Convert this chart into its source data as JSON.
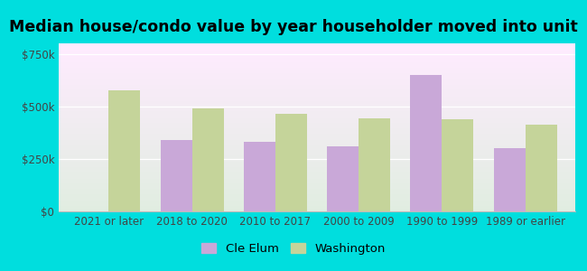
{
  "title": "Median house/condo value by year householder moved into unit",
  "categories": [
    "2021 or later",
    "2018 to 2020",
    "2010 to 2017",
    "2000 to 2009",
    "1990 to 1999",
    "1989 or earlier"
  ],
  "cle_elum": [
    0,
    340000,
    330000,
    310000,
    650000,
    300000
  ],
  "washington": [
    575000,
    490000,
    465000,
    445000,
    440000,
    415000
  ],
  "cle_elum_color": "#c9a8d8",
  "washington_color": "#c5d49a",
  "background_color": "#e8f8ee",
  "outer_background": "#00dede",
  "ylim": [
    0,
    800000
  ],
  "yticks": [
    0,
    250000,
    500000,
    750000
  ],
  "ytick_labels": [
    "$0",
    "$250k",
    "$500k",
    "$750k"
  ],
  "bar_width": 0.38,
  "legend_labels": [
    "Cle Elum",
    "Washington"
  ],
  "title_fontsize": 12.5,
  "tick_fontsize": 8.5,
  "legend_fontsize": 9.5
}
